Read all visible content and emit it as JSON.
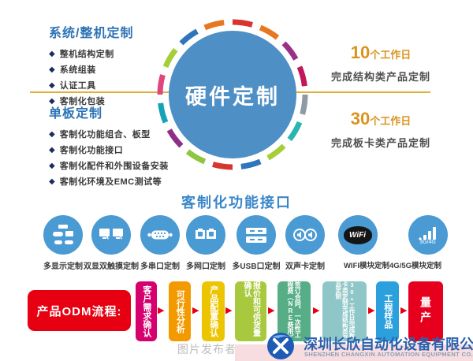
{
  "glyphs": {
    "bullet": "◆",
    "arrow": "▶"
  },
  "left_panels": [
    {
      "title": "系统/整机定制",
      "items": [
        "整机结构定制",
        "系统组装",
        "认证工具",
        "客制化包装"
      ]
    },
    {
      "title": "单板定制",
      "items": [
        "客制化功能组合、板型",
        "客制化功能接口",
        "客制化配件和外围设备安装",
        "客制化环境及EMC测试等"
      ]
    }
  ],
  "center_circle": {
    "label": "硬件定制",
    "fill": "#4e8fc5",
    "ring_colors": [
      "#d8352f",
      "#e87722",
      "#9c2f87",
      "#c2185b",
      "#8e9aa5",
      "#2ab5b0",
      "#a6ce39",
      "#2e75bb",
      "#d8352f",
      "#8dc63f",
      "#8e2f87",
      "#17a2b8",
      "#e0467c",
      "#a6ce39",
      "#2e75bb",
      "#e87722"
    ]
  },
  "right_panels": [
    {
      "days": "10",
      "unit": "个工作日",
      "desc": "完成结构类产品定制"
    },
    {
      "days": "30",
      "unit": "个工作日",
      "desc": "完成板卡类产品定制"
    }
  ],
  "interfaces": {
    "heading": "客制化功能接口",
    "items": [
      {
        "icon": "display-ports-icon",
        "label": "多显示定制"
      },
      {
        "icon": "dual-monitor-touch-icon",
        "label": "双显双触摸定制"
      },
      {
        "icon": "serial-port-icon",
        "label": "多串口定制"
      },
      {
        "icon": "ethernet-ports-icon",
        "label": "多网口定制"
      },
      {
        "icon": "usb-ports-icon",
        "label": "多USB口定制"
      },
      {
        "icon": "dual-audio-icon",
        "label": "双声卡定制"
      }
    ],
    "wifi_item": {
      "wifi_text": "WiFi",
      "signal_text": "3G/4G",
      "label": "WIFI模块定制4G/5G模块定制"
    }
  },
  "odm_flow": {
    "title": "产品ODM流程:",
    "steps": [
      {
        "label": "客户需求确认",
        "color": "#d5006e"
      },
      {
        "label": "可行性分析",
        "color": "#f39a00"
      },
      {
        "label": "产品配置确认",
        "color": "#ecc400"
      },
      {
        "label": "报价和可供货量确认",
        "color": "#a8c93e"
      },
      {
        "label": "签订合同、一次性工程费（NRE费用）",
        "color": "#57ae86"
      },
      {
        "label": "30+工作日完成板卡类定制完成结构类产品定制",
        "color": "#8fc6c8"
      },
      {
        "label": "工程样品",
        "color": "#2ca0dc"
      },
      {
        "label": "量产",
        "color": "#e6001e"
      }
    ],
    "arrow_color": "#e60012"
  },
  "footer": {
    "watermark": "图片发布者",
    "company": "深圳长欣自动化设备有限公司",
    "company_en": "SHENZHEN CHANGXIN AUTOMATION EQUIPMENT CO. LTD"
  }
}
